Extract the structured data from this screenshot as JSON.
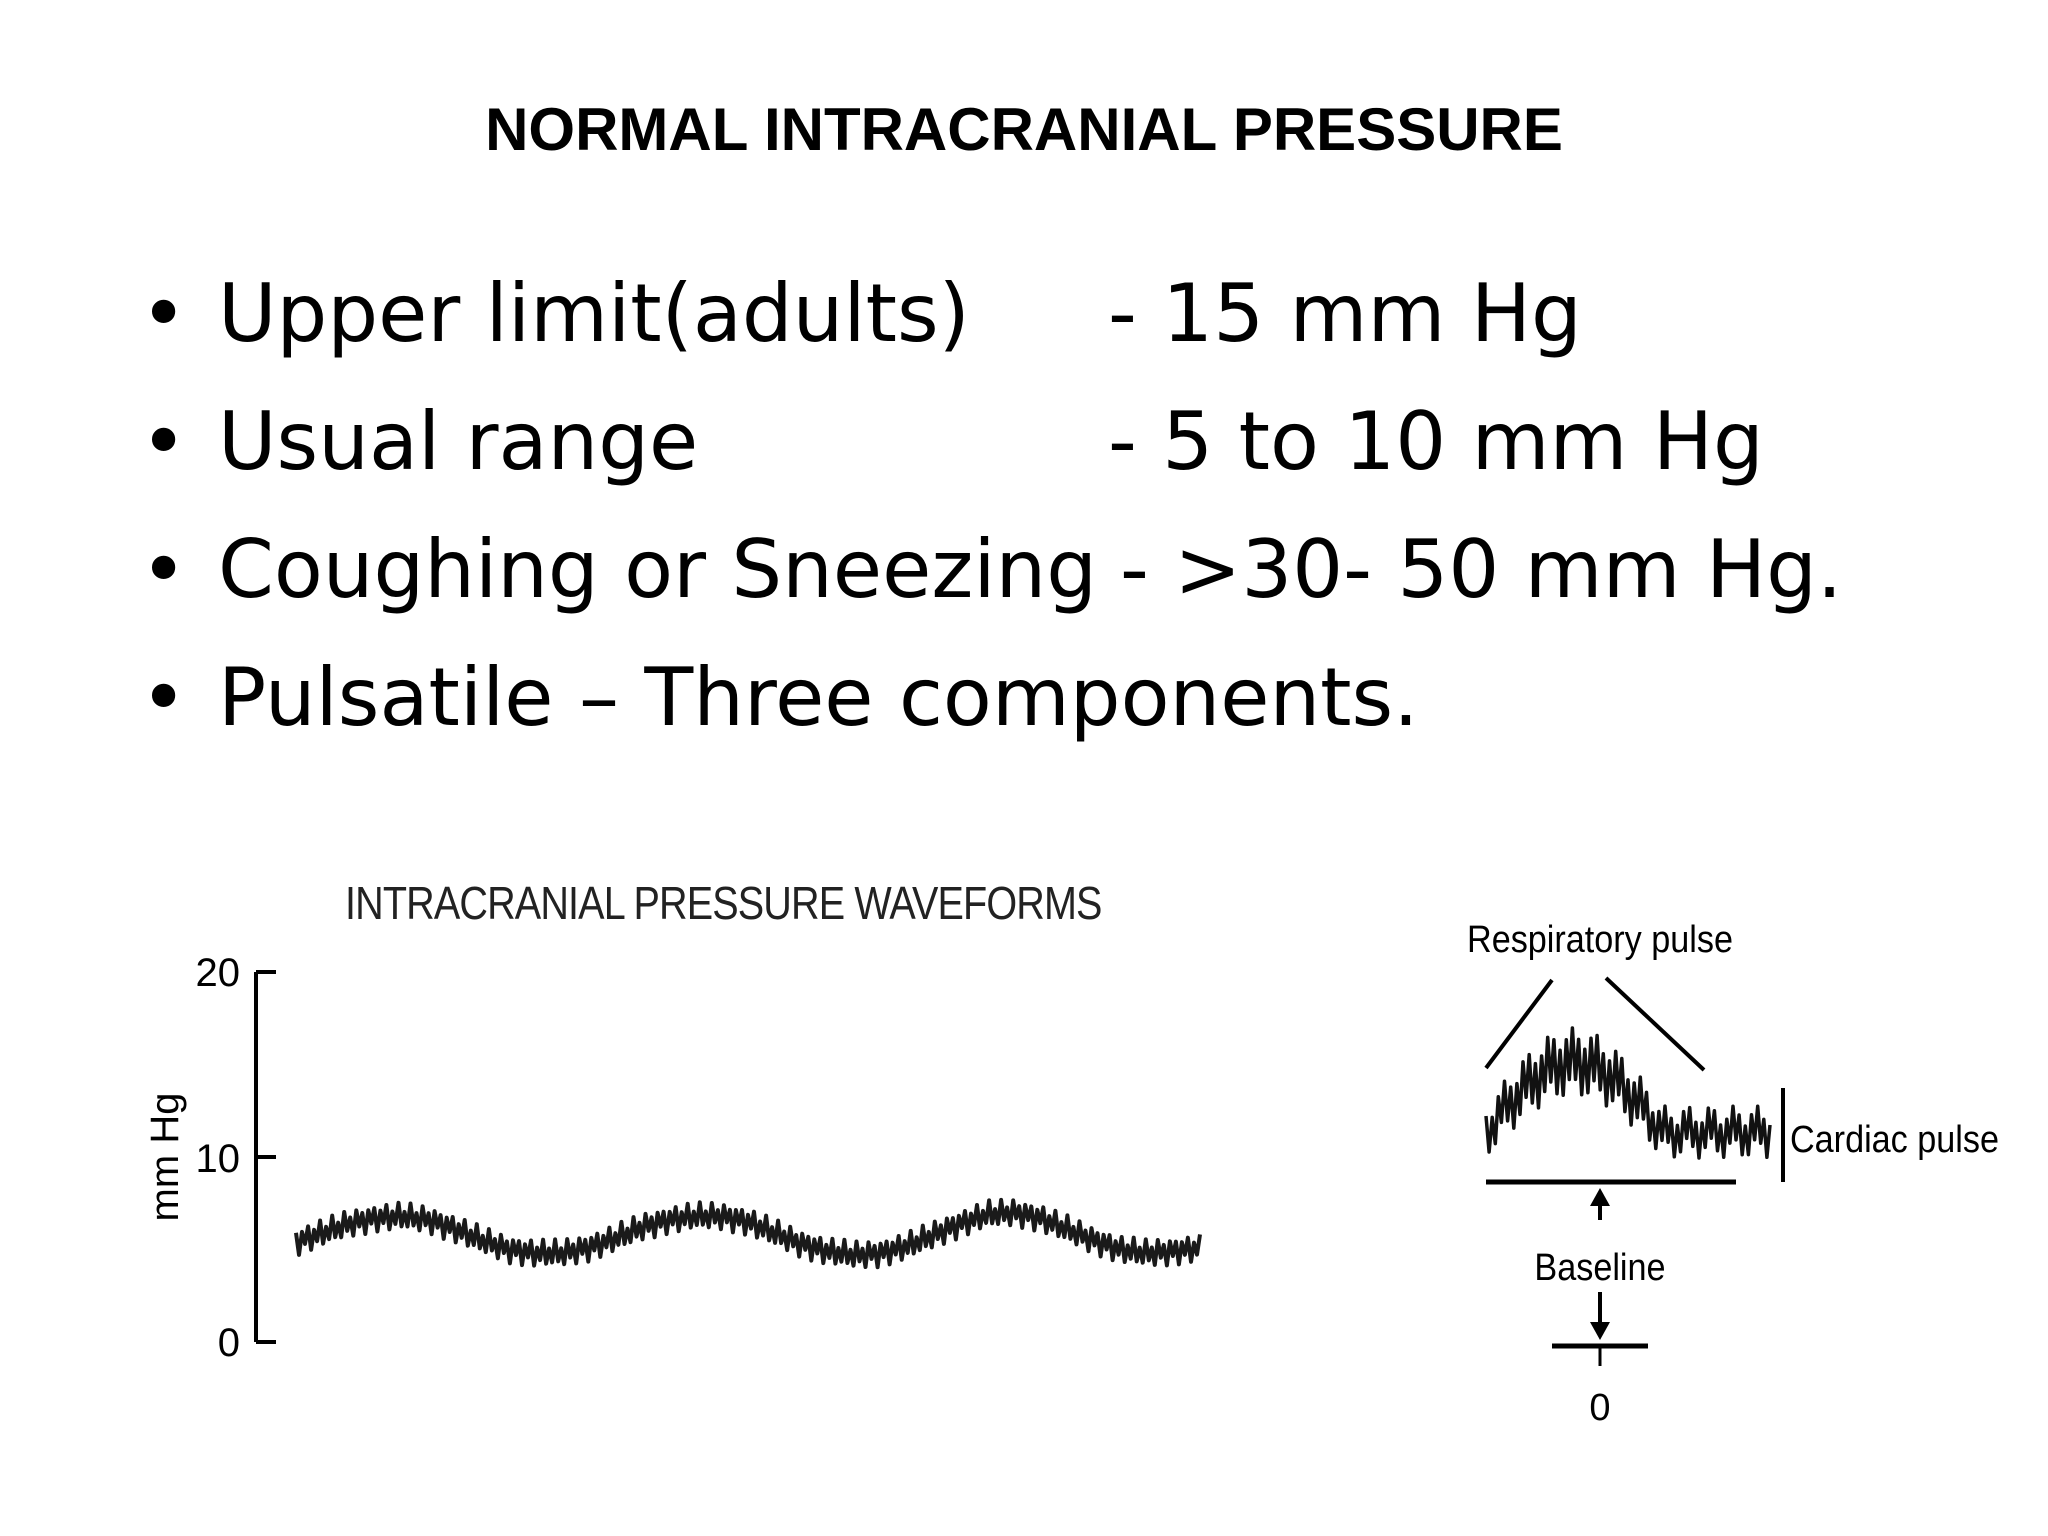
{
  "slide": {
    "title": "NORMAL INTRACRANIAL PRESSURE"
  },
  "bullets": [
    {
      "label": "Upper limit(adults)",
      "value": "- 15 mm Hg"
    },
    {
      "label": "Usual range",
      "value": "- 5 to 10 mm Hg"
    },
    {
      "label": "Coughing or Sneezing",
      "value": "- >30- 50 mm Hg."
    },
    {
      "label": "Pulsatile – Three components.",
      "value": ""
    }
  ],
  "figure": {
    "title": "INTRACRANIAL PRESSURE WAVEFORMS",
    "respiratory_label": "Respiratory pulse",
    "cardiac_label": "Cardiac pulse",
    "baseline_label": "Baseline",
    "zero_label": "0"
  },
  "chart_data": {
    "type": "line",
    "title": "INTRACRANIAL PRESSURE WAVEFORMS",
    "xlabel": "",
    "ylabel": "mm Hg",
    "yticks": [
      "0",
      "10",
      "20"
    ],
    "ylim": [
      0,
      20
    ],
    "grid": false,
    "series": [
      {
        "values": [
          5.4,
          5.9,
          6.4,
          6.7,
          6.8,
          6.6,
          6.1,
          5.5,
          5.0,
          4.8,
          4.8,
          5.1,
          5.6,
          6.2,
          6.6,
          6.8,
          6.8,
          6.5,
          5.9,
          5.3,
          4.9,
          4.7,
          4.8,
          5.2,
          5.8,
          6.4,
          6.9,
          7.0,
          6.7,
          6.1,
          5.5,
          5.0,
          4.8,
          4.9,
          5.1
        ]
      }
    ]
  }
}
